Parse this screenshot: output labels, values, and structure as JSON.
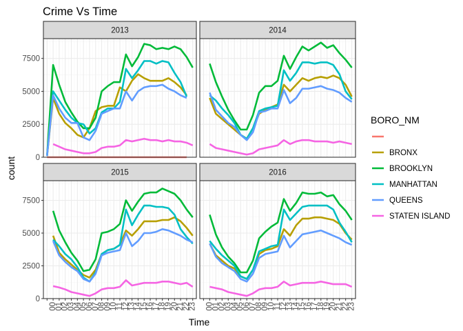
{
  "chart_data": {
    "type": "line",
    "title": "Crime Vs Time",
    "xlabel": "Time",
    "ylabel": "count",
    "ylim": [
      0,
      9000
    ],
    "yticks": [
      0,
      2500,
      5000,
      7500
    ],
    "x": [
      "00",
      "01",
      "02",
      "03",
      "04",
      "05",
      "06",
      "07",
      "08",
      "09",
      "10",
      "11",
      "12",
      "13",
      "14",
      "15",
      "16",
      "17",
      "18",
      "19",
      "20",
      "21",
      "22",
      "23"
    ],
    "legend_title": "BORO_NM",
    "legend_position": "right",
    "grid": true,
    "series_styles": [
      {
        "name": "",
        "color": "#F8766D"
      },
      {
        "name": "BRONX",
        "color": "#B79F00"
      },
      {
        "name": "BROOKLYN",
        "color": "#00BA38"
      },
      {
        "name": "MANHATTAN",
        "color": "#00BFC4"
      },
      {
        "name": "QUEENS",
        "color": "#619CFF"
      },
      {
        "name": "STATEN ISLAND",
        "color": "#F564E3"
      }
    ],
    "panels": [
      {
        "label": "2013",
        "series": [
          {
            "name": "",
            "values": [
              0,
              0,
              0,
              0,
              0,
              0,
              0,
              0,
              0,
              0,
              0,
              0,
              0,
              0,
              0,
              0,
              0,
              0,
              0,
              0,
              0,
              0,
              0,
              0
            ],
            "x_start": -1
          },
          {
            "name": "BRONX",
            "values": [
              100,
              4500,
              3300,
              2600,
              2200,
              1700,
              1500,
              2200,
              3500,
              3800,
              3900,
              3900,
              5300,
              5000,
              5800,
              6300,
              6000,
              5800,
              5800,
              5800,
              6000,
              5700,
              5300,
              4700
            ],
            "x_start": -1
          },
          {
            "name": "BROOKLYN",
            "values": [
              100,
              7000,
              5500,
              4200,
              3400,
              2700,
              2200,
              2200,
              3000,
              5000,
              5400,
              5700,
              5700,
              7800,
              6900,
              7600,
              8600,
              8500,
              8200,
              8300,
              8200,
              8400,
              8200,
              7600,
              6800
            ],
            "x_start": -1
          },
          {
            "name": "MANHATTAN",
            "values": [
              100,
              5000,
              4300,
              3600,
              3000,
              2600,
              2500,
              1800,
              2200,
              3400,
              3700,
              3700,
              4200,
              6700,
              6000,
              6600,
              7300,
              7300,
              7100,
              7300,
              7200,
              6400,
              5700,
              4600
            ],
            "x_start": -1
          },
          {
            "name": "QUEENS",
            "values": [
              100,
              4700,
              3700,
              3000,
              2600,
              2600,
              1500,
              1300,
              2000,
              3300,
              3500,
              3700,
              3700,
              5000,
              4300,
              5000,
              5300,
              5400,
              5400,
              5500,
              5200,
              5000,
              4700,
              4500
            ],
            "x_start": -1
          },
          {
            "name": "STATEN ISLAND",
            "values": [
              1000,
              800,
              600,
              500,
              400,
              300,
              300,
              400,
              700,
              800,
              800,
              900,
              1300,
              1200,
              1300,
              1400,
              1300,
              1300,
              1200,
              1300,
              1200,
              1200,
              1100,
              900
            ],
            "x_start": 0
          }
        ]
      },
      {
        "label": "2014",
        "series": [
          {
            "name": "BRONX",
            "values": [
              4500,
              3300,
              2900,
              2500,
              2100,
              1700,
              1400,
              2200,
              3300,
              3600,
              3800,
              4000,
              5500,
              5000,
              5500,
              6000,
              5800,
              6000,
              6100,
              6000,
              6200,
              6000,
              5500,
              4600
            ],
            "x_start": 0
          },
          {
            "name": "BROOKLYN",
            "values": [
              7100,
              5700,
              4600,
              3600,
              2800,
              2100,
              2100,
              3200,
              4900,
              5400,
              5400,
              5800,
              7700,
              6700,
              7600,
              8400,
              8100,
              8400,
              8700,
              8300,
              8500,
              7900,
              7400,
              6800
            ],
            "x_start": 0
          },
          {
            "name": "MANHATTAN",
            "values": [
              4700,
              4300,
              3700,
              3200,
              2600,
              1700,
              1400,
              2200,
              3500,
              3700,
              3800,
              3900,
              6600,
              5800,
              6400,
              7200,
              7200,
              7100,
              7200,
              7200,
              7000,
              6300,
              5000,
              4400
            ],
            "x_start": 0
          },
          {
            "name": "QUEENS",
            "values": [
              4900,
              3600,
              3100,
              2600,
              2300,
              1700,
              1300,
              1900,
              3400,
              3500,
              3700,
              3700,
              5100,
              4100,
              4500,
              5200,
              5200,
              5300,
              5400,
              5200,
              5100,
              4900,
              4500,
              4200
            ],
            "x_start": 0
          },
          {
            "name": "STATEN ISLAND",
            "values": [
              1000,
              700,
              600,
              500,
              400,
              300,
              200,
              300,
              600,
              700,
              800,
              900,
              1300,
              1000,
              1200,
              1300,
              1300,
              1200,
              1200,
              1200,
              1100,
              1200,
              1100,
              1000
            ],
            "x_start": 0
          }
        ]
      },
      {
        "label": "2015",
        "series": [
          {
            "name": "BRONX",
            "values": [
              4800,
              3500,
              3000,
              2600,
              2200,
              1800,
              1600,
              2200,
              3400,
              3700,
              3800,
              4100,
              5200,
              4800,
              5300,
              5900,
              5900,
              5900,
              6000,
              6000,
              6200,
              5900,
              5400,
              4800
            ],
            "x_start": 0
          },
          {
            "name": "BROOKLYN",
            "values": [
              6700,
              5200,
              4300,
              3500,
              2900,
              2100,
              2200,
              3000,
              5000,
              5100,
              5300,
              5700,
              7500,
              6700,
              7400,
              8000,
              8100,
              8100,
              8400,
              8200,
              8000,
              7500,
              6800,
              6200
            ],
            "x_start": 0
          },
          {
            "name": "MANHATTAN",
            "values": [
              4500,
              4000,
              3400,
              3000,
              2400,
              1600,
              1300,
              2000,
              3400,
              3700,
              3800,
              4100,
              6800,
              5600,
              6400,
              7100,
              7100,
              7000,
              7000,
              6900,
              6400,
              5300,
              4700,
              4200
            ],
            "x_start": 0
          },
          {
            "name": "QUEENS",
            "values": [
              4400,
              3300,
              2800,
              2400,
              2100,
              1500,
              1300,
              1900,
              3300,
              3500,
              3600,
              3700,
              5000,
              4000,
              4400,
              5000,
              5000,
              5100,
              5300,
              5200,
              5000,
              4800,
              4500,
              4300
            ],
            "x_start": 0
          },
          {
            "name": "STATEN ISLAND",
            "values": [
              950,
              850,
              700,
              500,
              400,
              300,
              200,
              400,
              700,
              800,
              800,
              900,
              1400,
              1000,
              1100,
              1200,
              1200,
              1200,
              1300,
              1300,
              1200,
              1100,
              1200,
              900
            ],
            "x_start": 0
          }
        ]
      },
      {
        "label": "2016",
        "series": [
          {
            "name": "BRONX",
            "values": [
              4200,
              3300,
              2900,
              2500,
              2300,
              1700,
              1500,
              2200,
              3400,
              3700,
              3800,
              4000,
              5300,
              4800,
              5600,
              6100,
              6100,
              6200,
              6200,
              6100,
              6000,
              5700,
              5000,
              4500
            ],
            "x_start": 0
          },
          {
            "name": "BROOKLYN",
            "values": [
              6400,
              4900,
              3900,
              3200,
              2700,
              2000,
              2000,
              2900,
              4600,
              5100,
              5500,
              5800,
              7600,
              6700,
              7300,
              8100,
              8000,
              8000,
              8100,
              7800,
              7900,
              7200,
              6700,
              6000
            ],
            "x_start": 0
          },
          {
            "name": "MANHATTAN",
            "values": [
              4400,
              3800,
              3300,
              2900,
              2500,
              1700,
              1500,
              2200,
              3600,
              3800,
              4000,
              4100,
              6800,
              6000,
              6500,
              7000,
              7100,
              7100,
              7100,
              7100,
              6800,
              5800,
              5100,
              4300
            ],
            "x_start": 0
          },
          {
            "name": "QUEENS",
            "values": [
              4200,
              3200,
              2700,
              2400,
              2100,
              1500,
              1300,
              1900,
              3100,
              3400,
              3500,
              3600,
              4800,
              3900,
              4400,
              4900,
              5000,
              5100,
              5200,
              5000,
              4800,
              4600,
              4300,
              4100
            ],
            "x_start": 0
          },
          {
            "name": "STATEN ISLAND",
            "values": [
              900,
              800,
              700,
              500,
              400,
              300,
              200,
              400,
              700,
              800,
              800,
              900,
              1300,
              1000,
              1100,
              1200,
              1200,
              1200,
              1300,
              1200,
              1100,
              1100,
              1100,
              900
            ],
            "x_start": 0
          }
        ]
      }
    ]
  }
}
